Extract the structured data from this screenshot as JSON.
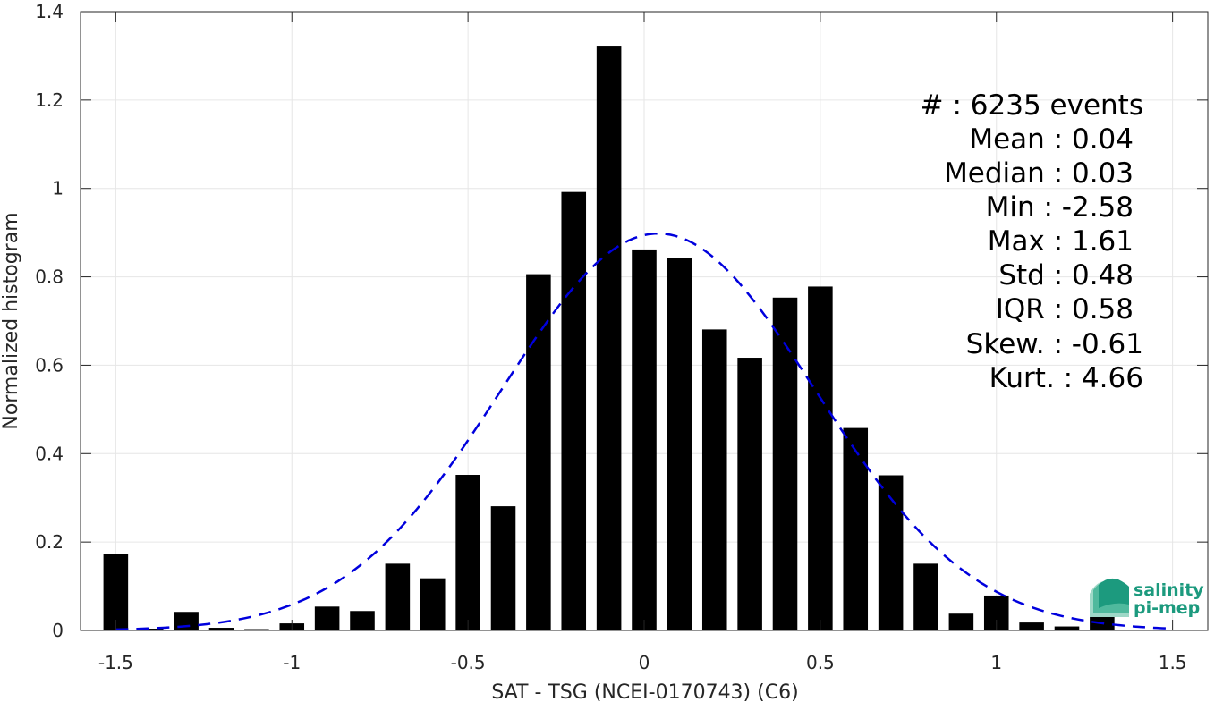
{
  "chart_data": {
    "type": "bar",
    "xlabel": "SAT - TSG (NCEI-0170743) (C6)",
    "ylabel": "Normalized histogram",
    "xlim": [
      -1.6,
      1.6
    ],
    "ylim": [
      0,
      1.4
    ],
    "xticks": [
      -1.5,
      -1,
      -0.5,
      0,
      0.5,
      1,
      1.5
    ],
    "xtick_labels": [
      "-1.5",
      "-1",
      "-0.5",
      "0",
      "0.5",
      "1",
      "1.5"
    ],
    "yticks": [
      0,
      0.2,
      0.4,
      0.6,
      0.8,
      1,
      1.2,
      1.4
    ],
    "ytick_labels": [
      "0",
      "0.2",
      "0.4",
      "0.6",
      "0.8",
      "1",
      "1.2",
      "1.4"
    ],
    "grid": true,
    "bar_width": 0.07,
    "bar_color": "#000000",
    "bars": [
      {
        "x": -1.5,
        "y": 0.172
      },
      {
        "x": -1.4,
        "y": 0.004
      },
      {
        "x": -1.3,
        "y": 0.042
      },
      {
        "x": -1.2,
        "y": 0.006
      },
      {
        "x": -1.1,
        "y": 0.003
      },
      {
        "x": -1.0,
        "y": 0.016
      },
      {
        "x": -0.9,
        "y": 0.054
      },
      {
        "x": -0.8,
        "y": 0.044
      },
      {
        "x": -0.7,
        "y": 0.151
      },
      {
        "x": -0.6,
        "y": 0.118
      },
      {
        "x": -0.5,
        "y": 0.352
      },
      {
        "x": -0.4,
        "y": 0.281
      },
      {
        "x": -0.3,
        "y": 0.806
      },
      {
        "x": -0.2,
        "y": 0.992
      },
      {
        "x": -0.1,
        "y": 1.323
      },
      {
        "x": 0.0,
        "y": 0.862
      },
      {
        "x": 0.1,
        "y": 0.842
      },
      {
        "x": 0.2,
        "y": 0.681
      },
      {
        "x": 0.3,
        "y": 0.617
      },
      {
        "x": 0.4,
        "y": 0.753
      },
      {
        "x": 0.5,
        "y": 0.778
      },
      {
        "x": 0.6,
        "y": 0.458
      },
      {
        "x": 0.7,
        "y": 0.351
      },
      {
        "x": 0.8,
        "y": 0.151
      },
      {
        "x": 0.9,
        "y": 0.038
      },
      {
        "x": 1.0,
        "y": 0.079
      },
      {
        "x": 1.1,
        "y": 0.018
      },
      {
        "x": 1.2,
        "y": 0.009
      },
      {
        "x": 1.3,
        "y": 0.032
      },
      {
        "x": 1.4,
        "y": 0.0
      },
      {
        "x": 1.5,
        "y": 0.002
      }
    ],
    "fit_curve": {
      "style": "dashed",
      "color": "#0000dd",
      "mean": 0.04,
      "std": 0.445,
      "peak": 0.898,
      "x_range": [
        -1.5,
        1.5
      ]
    },
    "stats": [
      {
        "label": "#  ",
        "value": "6235 events"
      },
      {
        "label": "Mean",
        "value": "0.04"
      },
      {
        "label": "Median",
        "value": "0.03"
      },
      {
        "label": "Min",
        "value": "-2.58"
      },
      {
        "label": "Max",
        "value": "1.61"
      },
      {
        "label": "Std",
        "value": "0.48"
      },
      {
        "label": "IQR",
        "value": "0.58"
      },
      {
        "label": "Skew.",
        "value": "-0.61"
      },
      {
        "label": "Kurt.",
        "value": "4.66"
      }
    ],
    "stats_lines": [
      "#  : 6235 events",
      "Mean : 0.04",
      "Median : 0.03",
      "Min : -2.58",
      "Max : 1.61",
      "Std : 0.48",
      "IQR : 0.58",
      "Skew. : -0.61",
      "Kurt. : 4.66"
    ]
  },
  "logo": {
    "line1": "salinity",
    "line2": "pi-mep",
    "colors": [
      "#1c9a7e",
      "#4fb99d",
      "#9ed8c7"
    ]
  }
}
